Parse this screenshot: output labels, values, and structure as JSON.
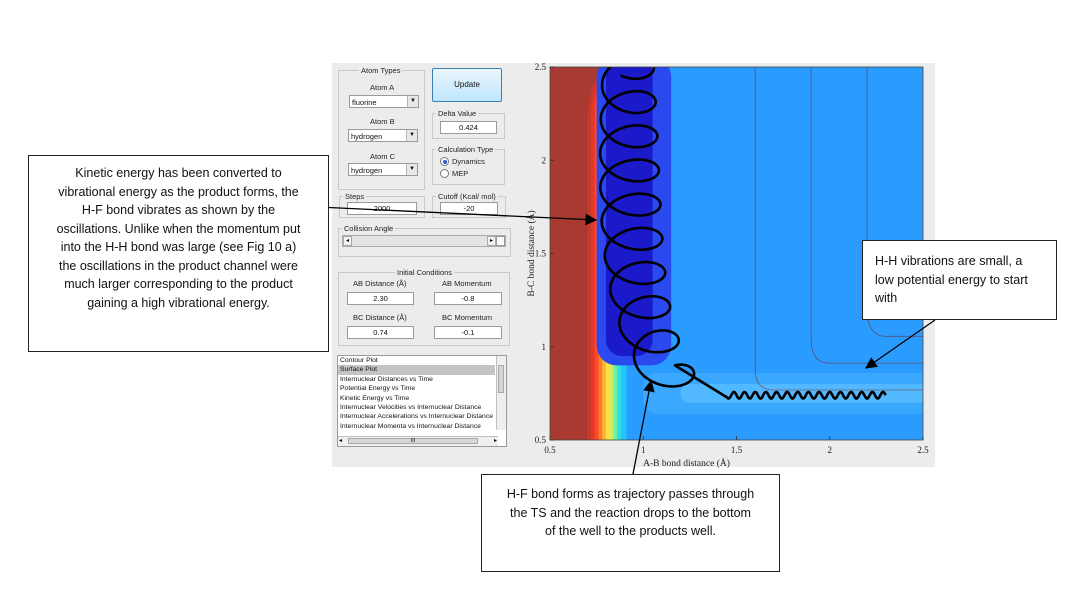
{
  "controls": {
    "atom_types": {
      "title": "Atom Types",
      "atom_a": {
        "label": "Atom A",
        "value": "fluorine"
      },
      "atom_b": {
        "label": "Atom B",
        "value": "hydrogen"
      },
      "atom_c": {
        "label": "Atom C",
        "value": "hydrogen"
      }
    },
    "update_label": "Update",
    "delta": {
      "label": "Delta Value",
      "value": "0.424"
    },
    "calc_type": {
      "title": "Calculation Type",
      "options": [
        "Dynamics",
        "MEP"
      ],
      "selected": "Dynamics"
    },
    "steps": {
      "label": "Steps",
      "value": "2000"
    },
    "cutoff": {
      "label": "Cutoff (Kcal/ mol)",
      "value": "-20"
    },
    "collision_angle": {
      "label": "Collision Angle"
    },
    "initial_conditions": {
      "title": "Initial Conditions",
      "ab_distance": {
        "label": "AB Distance (Å)",
        "value": "2.30"
      },
      "ab_momentum": {
        "label": "AB Momentum",
        "value": "-0.8"
      },
      "bc_distance": {
        "label": "BC Distance (Å)",
        "value": "0.74"
      },
      "bc_momentum": {
        "label": "BC Momentum",
        "value": "-0.1"
      }
    },
    "plot_types": {
      "items": [
        "Contour Plot",
        "Surface Plot",
        "Internuclear Distances vs Time",
        "Potential Energy vs Time",
        "Kinetic Energy vs Time",
        "Internuclear Velocities vs Internuclear Distance",
        "Internuclear Accelerations vs Internuclear Distance",
        "Internuclear Momenta vs Internuclear Distance"
      ],
      "selected_index": 1,
      "scroll_glyph": "III"
    }
  },
  "plot": {
    "xlabel": "A-B bond distance (Å)",
    "ylabel": "B-C bond distance (Å)",
    "x_ticks": [
      "0.5",
      "1",
      "1.5",
      "2",
      "2.5"
    ],
    "y_ticks": [
      "0.5",
      "1",
      "1.5",
      "2",
      "2.5"
    ],
    "xlim": [
      0.5,
      2.5
    ],
    "ylim": [
      0.5,
      2.5
    ],
    "colors": {
      "high": "#a83a32",
      "low": "#1a1acb",
      "trajectory": "#000000"
    }
  },
  "callouts": {
    "left": "Kinetic energy has been converted to vibrational energy as the product forms, the H-F bond vibrates as shown by the oscillations. Unlike when the momentum put into the H-H bond was large (see Fig 10 a) the oscillations in the product channel were much larger corresponding to the product gaining a high vibrational energy.",
    "right": "H-H vibrations are small, a low potential energy to start with",
    "bottom": "H-F bond forms as trajectory passes through the TS and the reaction drops to the bottom of the well to the products well."
  }
}
